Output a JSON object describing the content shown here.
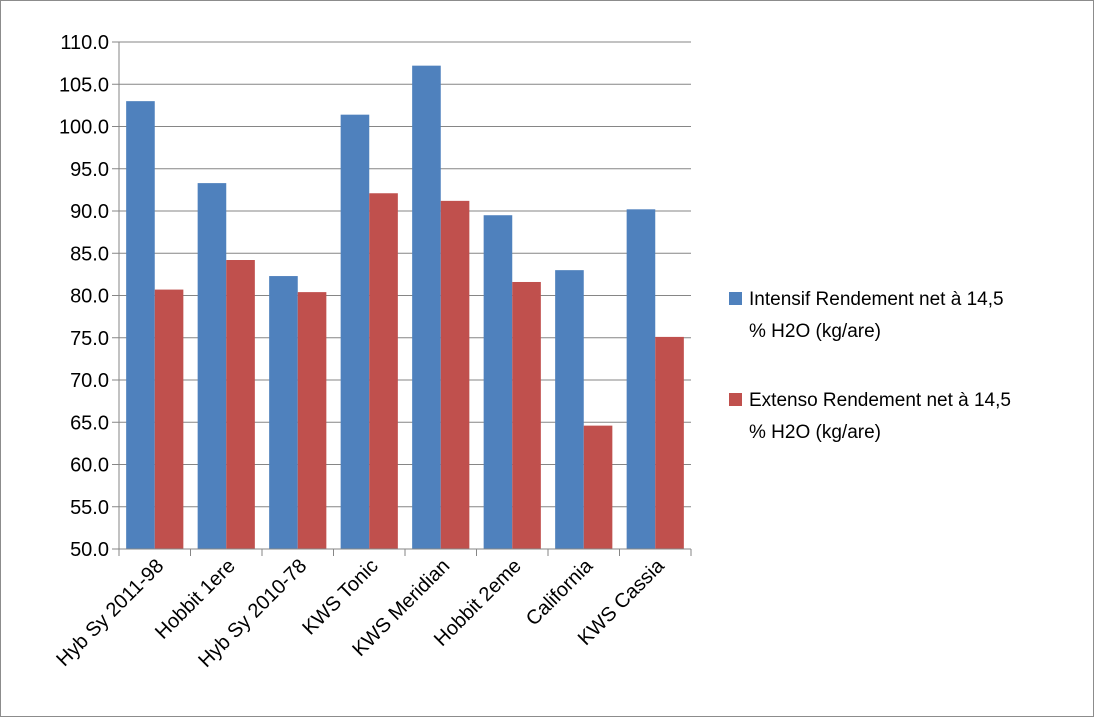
{
  "chart_data": {
    "type": "bar",
    "categories": [
      "Hyb Sy 2011-98",
      "Hobbit 1ere",
      "Hyb Sy 2010-78",
      "KWS Tonic",
      "KWS Meridian",
      "Hobbit 2eme",
      "California",
      "KWS Cassia"
    ],
    "series": [
      {
        "name": "Intensif Rendement net à 14,5 % H2O (kg/are)",
        "name_lines": [
          "Intensif Rendement net à 14,5",
          "% H2O (kg/are)"
        ],
        "color": "#4f81bd",
        "values": [
          103.0,
          93.3,
          82.3,
          101.4,
          107.2,
          89.5,
          83.0,
          90.2
        ]
      },
      {
        "name": "Extenso Rendement net à 14,5 % H2O (kg/are)",
        "name_lines": [
          "Extenso Rendement net à 14,5",
          "% H2O (kg/are)"
        ],
        "color": "#c0504d",
        "values": [
          80.7,
          84.2,
          80.4,
          92.1,
          91.2,
          81.6,
          64.6,
          75.1
        ]
      }
    ],
    "yticks": [
      "50.0",
      "55.0",
      "60.0",
      "65.0",
      "70.0",
      "75.0",
      "80.0",
      "85.0",
      "90.0",
      "95.0",
      "100.0",
      "105.0",
      "110.0"
    ],
    "ylim": [
      50,
      110
    ],
    "ystep": 5,
    "grid": true,
    "legend_position": "right"
  }
}
